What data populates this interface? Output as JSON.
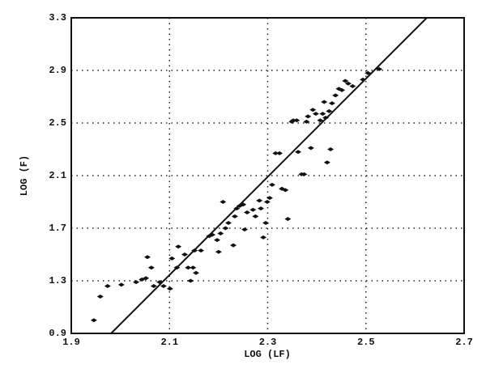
{
  "chart_data": {
    "type": "scatter",
    "x_label": "LOG (LF)",
    "y_label": "LOG (F)",
    "xlim": [
      1.9,
      2.7
    ],
    "xticks": [
      1.9,
      2.1,
      2.3,
      2.5,
      2.7
    ],
    "ylim": [
      0.9,
      3.3
    ],
    "yticks": [
      0.9,
      1.3,
      1.7,
      2.1,
      2.5,
      2.9,
      3.3
    ],
    "grid": true,
    "color": "#111111",
    "x": [
      1.946,
      1.959,
      1.974,
      2.002,
      2.032,
      2.044,
      2.052,
      2.055,
      2.063,
      2.068,
      2.08,
      2.088,
      2.101,
      2.105,
      2.115,
      2.118,
      2.131,
      2.138,
      2.143,
      2.148,
      2.151,
      2.154,
      2.164,
      2.181,
      2.187,
      2.197,
      2.2,
      2.204,
      2.209,
      2.214,
      2.22,
      2.23,
      2.233,
      2.237,
      2.243,
      2.25,
      2.253,
      2.258,
      2.27,
      2.275,
      2.283,
      2.286,
      2.291,
      2.296,
      2.299,
      2.304,
      2.309,
      2.316,
      2.324,
      2.329,
      2.336,
      2.341,
      2.349,
      2.352,
      2.359,
      2.362,
      2.369,
      2.374,
      2.379,
      2.382,
      2.388,
      2.392,
      2.398,
      2.407,
      2.412,
      2.415,
      2.418,
      2.421,
      2.425,
      2.428,
      2.431,
      2.438,
      2.445,
      2.451,
      2.458,
      2.464,
      2.473,
      2.494,
      2.504,
      2.527
    ],
    "values": [
      1.0,
      1.18,
      1.26,
      1.27,
      1.29,
      1.31,
      1.32,
      1.48,
      1.4,
      1.26,
      1.29,
      1.26,
      1.24,
      1.47,
      1.4,
      1.56,
      1.5,
      1.4,
      1.3,
      1.4,
      1.53,
      1.36,
      1.53,
      1.64,
      1.65,
      1.61,
      1.52,
      1.66,
      1.9,
      1.7,
      1.74,
      1.57,
      1.79,
      1.85,
      1.87,
      1.88,
      1.69,
      1.82,
      1.84,
      1.79,
      1.91,
      1.85,
      1.63,
      1.74,
      1.9,
      1.93,
      2.03,
      2.27,
      2.27,
      2.0,
      1.99,
      1.77,
      2.51,
      2.52,
      2.52,
      2.28,
      2.11,
      2.11,
      2.51,
      2.55,
      2.31,
      2.6,
      2.57,
      2.52,
      2.57,
      2.66,
      2.54,
      2.2,
      2.59,
      2.3,
      2.65,
      2.71,
      2.76,
      2.75,
      2.82,
      2.8,
      2.78,
      2.83,
      2.88,
      2.91
    ],
    "fit_line": {
      "x": [
        1.981,
        2.624
      ],
      "y": [
        0.9,
        3.3
      ]
    }
  }
}
